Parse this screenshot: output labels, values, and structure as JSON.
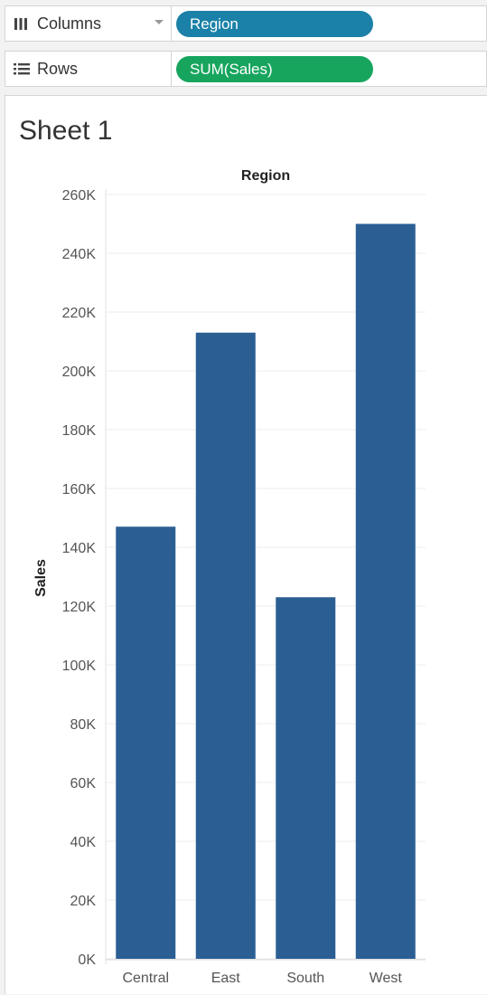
{
  "shelves": {
    "columns": {
      "label": "Columns",
      "icon": "columns-icon",
      "pill": "Region",
      "pill_color": "#1b81a8"
    },
    "rows": {
      "label": "Rows",
      "icon": "rows-icon",
      "pill": "SUM(Sales)",
      "pill_color": "#17a55e"
    }
  },
  "sheet": {
    "title": "Sheet 1"
  },
  "chart_data": {
    "type": "bar",
    "title": "Region",
    "xlabel": "",
    "ylabel": "Sales",
    "categories": [
      "Central",
      "East",
      "South",
      "West"
    ],
    "values": [
      147000,
      213000,
      123000,
      250000
    ],
    "ylim": [
      0,
      260000
    ],
    "y_ticks": [
      0,
      20000,
      40000,
      60000,
      80000,
      100000,
      120000,
      140000,
      160000,
      180000,
      200000,
      220000,
      240000,
      260000
    ],
    "y_tick_labels": [
      "0K",
      "20K",
      "40K",
      "60K",
      "80K",
      "100K",
      "120K",
      "140K",
      "160K",
      "180K",
      "200K",
      "220K",
      "240K",
      "260K"
    ],
    "bar_color": "#2b5f94",
    "grid": true
  }
}
